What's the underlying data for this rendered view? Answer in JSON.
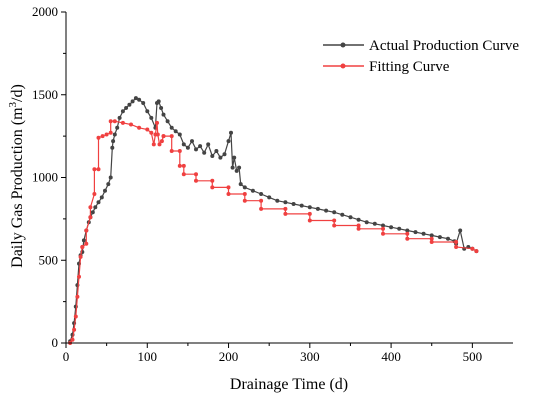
{
  "chart_data": {
    "type": "line",
    "title": "",
    "xlabel": "Drainage Time (d)",
    "ylabel_main": "Daily Gas Production (m",
    "ylabel_sup": "3",
    "ylabel_tail": "/d)",
    "xlim": [
      0,
      550
    ],
    "ylim": [
      0,
      2000
    ],
    "xticks": [
      0,
      100,
      200,
      300,
      400,
      500
    ],
    "yticks": [
      0,
      500,
      1000,
      1500,
      2000
    ],
    "grid": false,
    "legend_position": "top-right",
    "series": [
      {
        "name": "Actual Production Curve",
        "color": "#444444",
        "marker": "circle",
        "x": [
          5,
          8,
          10,
          12,
          14,
          16,
          18,
          20,
          22,
          25,
          28,
          30,
          33,
          36,
          40,
          44,
          48,
          52,
          55,
          57,
          58,
          60,
          63,
          66,
          70,
          74,
          78,
          82,
          86,
          90,
          95,
          100,
          105,
          110,
          112,
          114,
          117,
          120,
          125,
          130,
          135,
          140,
          145,
          150,
          155,
          160,
          165,
          170,
          175,
          180,
          185,
          190,
          195,
          200,
          203,
          205,
          207,
          210,
          213,
          215,
          220,
          230,
          240,
          250,
          260,
          270,
          280,
          290,
          300,
          310,
          320,
          330,
          340,
          350,
          360,
          370,
          380,
          390,
          400,
          410,
          420,
          430,
          440,
          450,
          460,
          470,
          478,
          480,
          485,
          490,
          495,
          500,
          505
        ],
        "y": [
          10,
          50,
          120,
          220,
          350,
          480,
          530,
          550,
          620,
          680,
          730,
          760,
          790,
          820,
          850,
          880,
          920,
          960,
          1000,
          1180,
          1220,
          1260,
          1300,
          1360,
          1400,
          1420,
          1440,
          1460,
          1480,
          1470,
          1450,
          1400,
          1360,
          1300,
          1450,
          1460,
          1420,
          1380,
          1340,
          1300,
          1280,
          1260,
          1200,
          1180,
          1220,
          1170,
          1190,
          1150,
          1200,
          1130,
          1160,
          1120,
          1140,
          1220,
          1270,
          1060,
          1120,
          1040,
          1060,
          960,
          940,
          920,
          900,
          880,
          860,
          850,
          840,
          830,
          820,
          810,
          800,
          790,
          775,
          760,
          745,
          730,
          720,
          710,
          700,
          690,
          680,
          670,
          660,
          650,
          640,
          630,
          615,
          600,
          680,
          570,
          580,
          570,
          555
        ]
      },
      {
        "name": "Fitting Curve",
        "color": "#f04040",
        "marker": "circle",
        "x": [
          5,
          8,
          10,
          12,
          14,
          16,
          18,
          20,
          20,
          25,
          25,
          30,
          30,
          35,
          35,
          40,
          40,
          45,
          50,
          55,
          55,
          60,
          70,
          80,
          90,
          100,
          105,
          108,
          110,
          112,
          113,
          115,
          118,
          120,
          120,
          130,
          130,
          140,
          140,
          145,
          145,
          160,
          160,
          180,
          180,
          200,
          200,
          220,
          220,
          240,
          240,
          270,
          270,
          300,
          300,
          330,
          330,
          360,
          360,
          390,
          390,
          420,
          420,
          450,
          450,
          480,
          480,
          500,
          505
        ],
        "y": [
          0,
          20,
          80,
          160,
          280,
          400,
          520,
          580,
          580,
          600,
          680,
          760,
          820,
          900,
          1050,
          1050,
          1240,
          1250,
          1260,
          1270,
          1340,
          1340,
          1330,
          1320,
          1300,
          1290,
          1270,
          1200,
          1260,
          1330,
          1260,
          1200,
          1220,
          1250,
          1250,
          1250,
          1160,
          1160,
          1070,
          1070,
          1020,
          1020,
          980,
          980,
          940,
          940,
          900,
          900,
          860,
          860,
          810,
          810,
          780,
          780,
          740,
          740,
          710,
          710,
          690,
          690,
          660,
          660,
          630,
          630,
          610,
          610,
          580,
          570,
          555
        ]
      }
    ]
  }
}
